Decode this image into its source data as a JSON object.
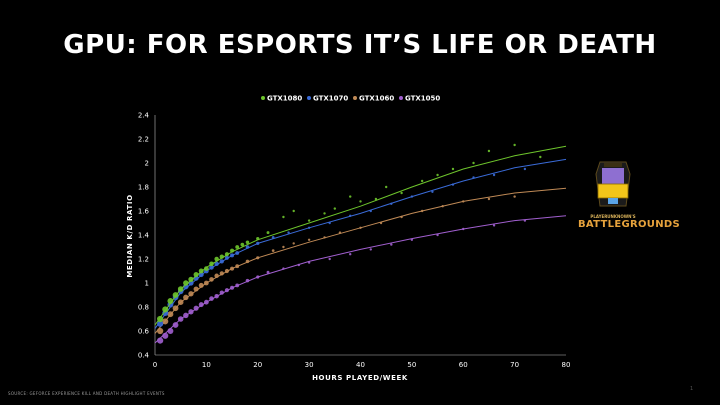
{
  "slide": {
    "title": "GPU: FOR ESPORTS IT’S LIFE OR DEATH",
    "source": "SOURCE: GEFORCE EXPERIENCE KILL AND DEATH HIGHLIGHT EVENTS",
    "page_number": "1"
  },
  "logos": {
    "fortnite_icon": "fortnite-battle-royale-logo",
    "pubg_small": "PLAYERUNKNOWN'S",
    "pubg_big": "BATTLEGROUNDS"
  },
  "chart_data": {
    "type": "scatter",
    "xlabel": "HOURS PLAYED/WEEK",
    "ylabel": "MEDIAN K/D RATIO",
    "xlim": [
      0,
      80
    ],
    "ylim": [
      0.4,
      2.4
    ],
    "xticks": [
      0,
      10,
      20,
      30,
      40,
      50,
      60,
      70,
      80
    ],
    "yticks": [
      0.4,
      0.6,
      0.8,
      1,
      1.2,
      1.4,
      1.6,
      1.8,
      2,
      2.2,
      2.4
    ],
    "grid": false,
    "legend_position": "top-center",
    "trend_lines": true,
    "series": [
      {
        "name": "GTX1080",
        "color": "#6ec52c",
        "trend": [
          [
            0,
            0.65
          ],
          [
            5,
            0.95
          ],
          [
            10,
            1.13
          ],
          [
            15,
            1.26
          ],
          [
            20,
            1.36
          ],
          [
            30,
            1.5
          ],
          [
            40,
            1.64
          ],
          [
            50,
            1.8
          ],
          [
            60,
            1.95
          ],
          [
            70,
            2.06
          ],
          [
            80,
            2.14
          ]
        ],
        "points": [
          [
            1,
            0.7
          ],
          [
            2,
            0.78
          ],
          [
            3,
            0.85
          ],
          [
            4,
            0.9
          ],
          [
            5,
            0.95
          ],
          [
            6,
            1.0
          ],
          [
            7,
            1.03
          ],
          [
            8,
            1.07
          ],
          [
            9,
            1.1
          ],
          [
            10,
            1.12
          ],
          [
            11,
            1.16
          ],
          [
            12,
            1.2
          ],
          [
            13,
            1.22
          ],
          [
            14,
            1.24
          ],
          [
            15,
            1.27
          ],
          [
            16,
            1.3
          ],
          [
            17,
            1.32
          ],
          [
            18,
            1.34
          ],
          [
            20,
            1.37
          ],
          [
            22,
            1.42
          ],
          [
            25,
            1.55
          ],
          [
            27,
            1.6
          ],
          [
            30,
            1.52
          ],
          [
            33,
            1.58
          ],
          [
            35,
            1.62
          ],
          [
            38,
            1.72
          ],
          [
            40,
            1.68
          ],
          [
            43,
            1.7
          ],
          [
            45,
            1.8
          ],
          [
            48,
            1.75
          ],
          [
            52,
            1.85
          ],
          [
            55,
            1.9
          ],
          [
            58,
            1.95
          ],
          [
            62,
            2.0
          ],
          [
            65,
            2.1
          ],
          [
            70,
            2.15
          ],
          [
            75,
            2.05
          ]
        ]
      },
      {
        "name": "GTX1070",
        "color": "#3a6bd8",
        "trend": [
          [
            0,
            0.62
          ],
          [
            5,
            0.92
          ],
          [
            10,
            1.1
          ],
          [
            15,
            1.23
          ],
          [
            20,
            1.33
          ],
          [
            30,
            1.46
          ],
          [
            40,
            1.58
          ],
          [
            50,
            1.72
          ],
          [
            60,
            1.85
          ],
          [
            70,
            1.96
          ],
          [
            80,
            2.03
          ]
        ],
        "points": [
          [
            1,
            0.66
          ],
          [
            2,
            0.75
          ],
          [
            3,
            0.82
          ],
          [
            4,
            0.88
          ],
          [
            5,
            0.93
          ],
          [
            6,
            0.97
          ],
          [
            7,
            1.0
          ],
          [
            8,
            1.04
          ],
          [
            9,
            1.07
          ],
          [
            10,
            1.1
          ],
          [
            11,
            1.13
          ],
          [
            12,
            1.16
          ],
          [
            13,
            1.18
          ],
          [
            14,
            1.21
          ],
          [
            15,
            1.23
          ],
          [
            16,
            1.25
          ],
          [
            18,
            1.3
          ],
          [
            20,
            1.33
          ],
          [
            23,
            1.38
          ],
          [
            26,
            1.42
          ],
          [
            30,
            1.46
          ],
          [
            34,
            1.5
          ],
          [
            38,
            1.56
          ],
          [
            42,
            1.6
          ],
          [
            46,
            1.66
          ],
          [
            50,
            1.72
          ],
          [
            54,
            1.76
          ],
          [
            58,
            1.82
          ],
          [
            62,
            1.88
          ],
          [
            66,
            1.9
          ],
          [
            72,
            1.95
          ]
        ]
      },
      {
        "name": "GTX1060",
        "color": "#c08a56",
        "trend": [
          [
            0,
            0.58
          ],
          [
            5,
            0.84
          ],
          [
            10,
            1.0
          ],
          [
            15,
            1.12
          ],
          [
            20,
            1.21
          ],
          [
            30,
            1.34
          ],
          [
            40,
            1.46
          ],
          [
            50,
            1.58
          ],
          [
            60,
            1.68
          ],
          [
            70,
            1.75
          ],
          [
            80,
            1.79
          ]
        ],
        "points": [
          [
            1,
            0.6
          ],
          [
            2,
            0.68
          ],
          [
            3,
            0.74
          ],
          [
            4,
            0.79
          ],
          [
            5,
            0.84
          ],
          [
            6,
            0.88
          ],
          [
            7,
            0.91
          ],
          [
            8,
            0.95
          ],
          [
            9,
            0.98
          ],
          [
            10,
            1.0
          ],
          [
            11,
            1.03
          ],
          [
            12,
            1.06
          ],
          [
            13,
            1.08
          ],
          [
            14,
            1.1
          ],
          [
            15,
            1.12
          ],
          [
            16,
            1.14
          ],
          [
            18,
            1.18
          ],
          [
            20,
            1.21
          ],
          [
            23,
            1.27
          ],
          [
            25,
            1.3
          ],
          [
            27,
            1.33
          ],
          [
            30,
            1.36
          ],
          [
            33,
            1.38
          ],
          [
            36,
            1.42
          ],
          [
            40,
            1.46
          ],
          [
            44,
            1.5
          ],
          [
            48,
            1.55
          ],
          [
            52,
            1.6
          ],
          [
            56,
            1.64
          ],
          [
            60,
            1.68
          ],
          [
            65,
            1.7
          ],
          [
            70,
            1.72
          ]
        ]
      },
      {
        "name": "GTX1050",
        "color": "#a15fcf",
        "trend": [
          [
            0,
            0.5
          ],
          [
            5,
            0.7
          ],
          [
            10,
            0.84
          ],
          [
            15,
            0.96
          ],
          [
            20,
            1.05
          ],
          [
            30,
            1.18
          ],
          [
            40,
            1.28
          ],
          [
            50,
            1.37
          ],
          [
            60,
            1.45
          ],
          [
            70,
            1.52
          ],
          [
            80,
            1.56
          ]
        ],
        "points": [
          [
            1,
            0.52
          ],
          [
            2,
            0.56
          ],
          [
            3,
            0.6
          ],
          [
            4,
            0.65
          ],
          [
            5,
            0.7
          ],
          [
            6,
            0.73
          ],
          [
            7,
            0.76
          ],
          [
            8,
            0.79
          ],
          [
            9,
            0.82
          ],
          [
            10,
            0.84
          ],
          [
            11,
            0.87
          ],
          [
            12,
            0.89
          ],
          [
            13,
            0.92
          ],
          [
            14,
            0.94
          ],
          [
            15,
            0.96
          ],
          [
            16,
            0.98
          ],
          [
            18,
            1.02
          ],
          [
            20,
            1.05
          ],
          [
            22,
            1.09
          ],
          [
            25,
            1.12
          ],
          [
            28,
            1.15
          ],
          [
            30,
            1.17
          ],
          [
            34,
            1.2
          ],
          [
            38,
            1.24
          ],
          [
            42,
            1.28
          ],
          [
            46,
            1.32
          ],
          [
            50,
            1.36
          ],
          [
            55,
            1.4
          ],
          [
            60,
            1.45
          ],
          [
            66,
            1.48
          ],
          [
            72,
            1.52
          ]
        ]
      }
    ]
  }
}
